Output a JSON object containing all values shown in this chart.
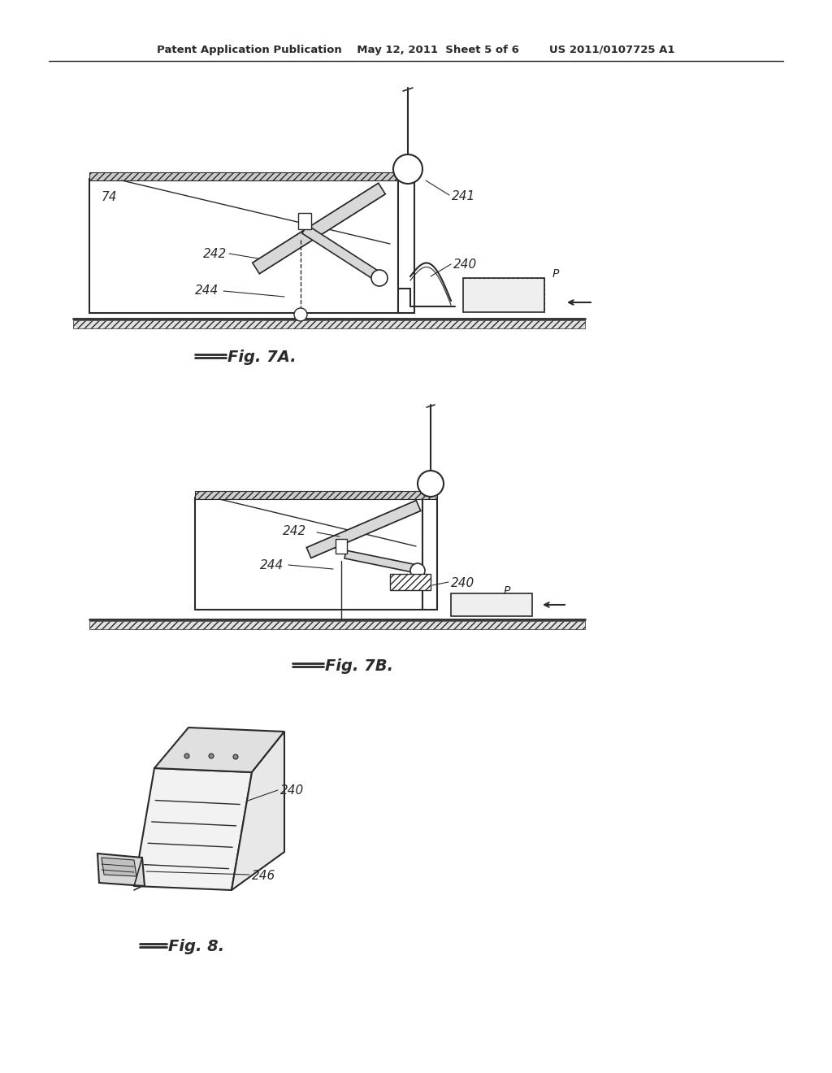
{
  "bg_color": "#ffffff",
  "line_color": "#2a2a2a",
  "header": "Patent Application Publication    May 12, 2011  Sheet 5 of 6        US 2011/0107725 A1",
  "fig7a_caption": "Fig. 7A.",
  "fig7b_caption": "Fig. 7B.",
  "fig8_caption": "Fig. 8.",
  "label_74": "74",
  "label_241": "241",
  "label_242": "242",
  "label_244": "244",
  "label_240": "240",
  "label_P": "P",
  "label_246": "246"
}
